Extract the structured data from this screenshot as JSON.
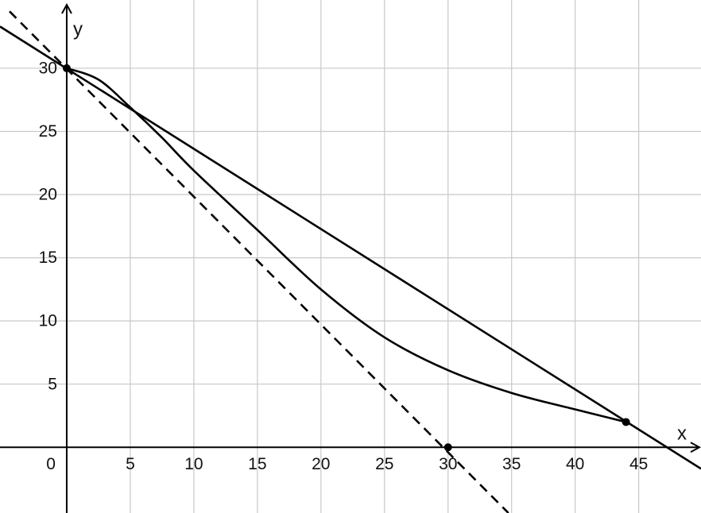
{
  "chart_data": {
    "type": "line",
    "x_label": "x",
    "y_label": "y",
    "xlim": [
      -5.25,
      49.9
    ],
    "ylim": [
      -5.2,
      35.4
    ],
    "xticks": [
      0,
      5,
      10,
      15,
      20,
      25,
      30,
      35,
      40,
      45
    ],
    "yticks": [
      5,
      10,
      15,
      20,
      25,
      30
    ],
    "grid": true,
    "series": [
      {
        "style": "solid",
        "color": "#000000",
        "x": [
          -5.25,
          49.9
        ],
        "values": [
          33.3,
          -1.7
        ]
      },
      {
        "style": "solid",
        "color": "#000000",
        "x": [
          0,
          2.5,
          5,
          7.5,
          10,
          15,
          20,
          25,
          30,
          35,
          40,
          44
        ],
        "values": [
          30,
          29.1,
          26.9,
          24.5,
          21.9,
          17.2,
          12.5,
          8.7,
          6.1,
          4.3,
          3.0,
          2
        ]
      },
      {
        "style": "dashed",
        "color": "#000000",
        "x": [
          -4.5,
          34.75
        ],
        "values": [
          34.5,
          -5.2
        ]
      },
      {
        "style": "points",
        "color": "#000000",
        "x": [
          0,
          30,
          44
        ],
        "values": [
          30,
          0,
          2
        ]
      }
    ]
  }
}
